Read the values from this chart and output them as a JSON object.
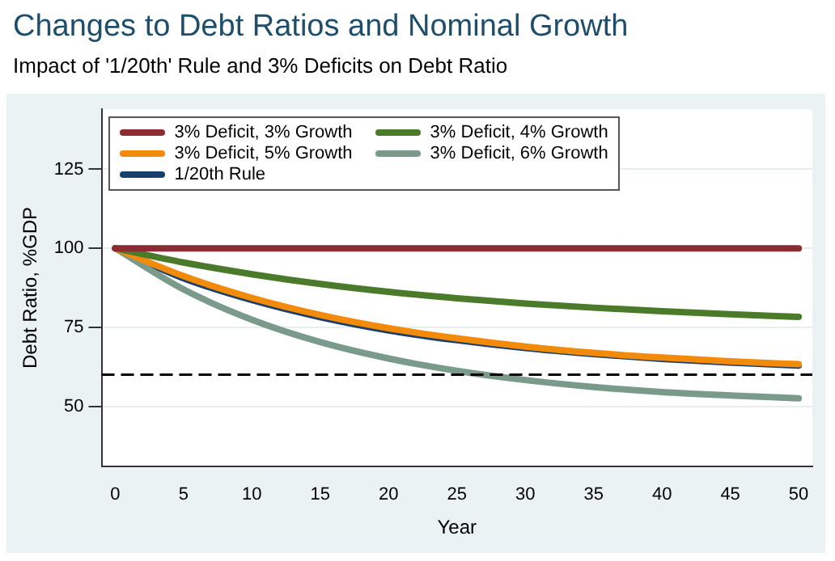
{
  "chart_data": {
    "type": "line",
    "title": "Changes to Debt Ratios and Nominal Growth",
    "subtitle": "Impact of '1/20th' Rule and 3% Deficits on Debt Ratio",
    "xlabel": "Year",
    "ylabel": "Debt Ratio, %GDP",
    "x": [
      0,
      5,
      10,
      15,
      20,
      25,
      30,
      35,
      40,
      45,
      50
    ],
    "series": [
      {
        "name": "3% Deficit, 3% Growth",
        "color": "#8b2c35",
        "values": [
          100,
          100,
          100,
          100,
          100,
          100,
          100,
          100,
          100,
          100,
          100
        ]
      },
      {
        "name": "3% Deficit, 4% Growth",
        "color": "#4a7a2a",
        "values": [
          100,
          95.5,
          91.8,
          88.7,
          86.2,
          84.2,
          82.5,
          81.2,
          80.1,
          79.1,
          78.3
        ]
      },
      {
        "name": "3% Deficit, 5% Growth",
        "color": "#f28a0b",
        "values": [
          100,
          91.2,
          84.3,
          78.9,
          74.7,
          71.5,
          68.9,
          66.9,
          65.4,
          64.2,
          63.3
        ]
      },
      {
        "name": "3% Deficit, 6% Growth",
        "color": "#7a9a8c",
        "values": [
          100,
          87,
          77.4,
          70.3,
          65.1,
          61.2,
          58.3,
          56.1,
          54.5,
          53.4,
          52.5
        ]
      },
      {
        "name": "1/20th Rule",
        "color": "#1a3f6b",
        "values": [
          100,
          90.5,
          83.6,
          78.2,
          74,
          70.9,
          68.4,
          66.5,
          65,
          63.8,
          62.9
        ]
      }
    ],
    "xlim": [
      -1,
      51
    ],
    "xticks": [
      0,
      5,
      10,
      15,
      20,
      25,
      30,
      35,
      40,
      45,
      50
    ],
    "ylim": [
      31,
      144
    ],
    "yticks": [
      50,
      75,
      100,
      125
    ],
    "ref_lines": [
      {
        "axis": "y",
        "value": 60,
        "color": "#000000",
        "line_style": "dashed"
      }
    ],
    "grid": "y",
    "legend": "top left",
    "marker": "none",
    "line_style": "solid"
  }
}
